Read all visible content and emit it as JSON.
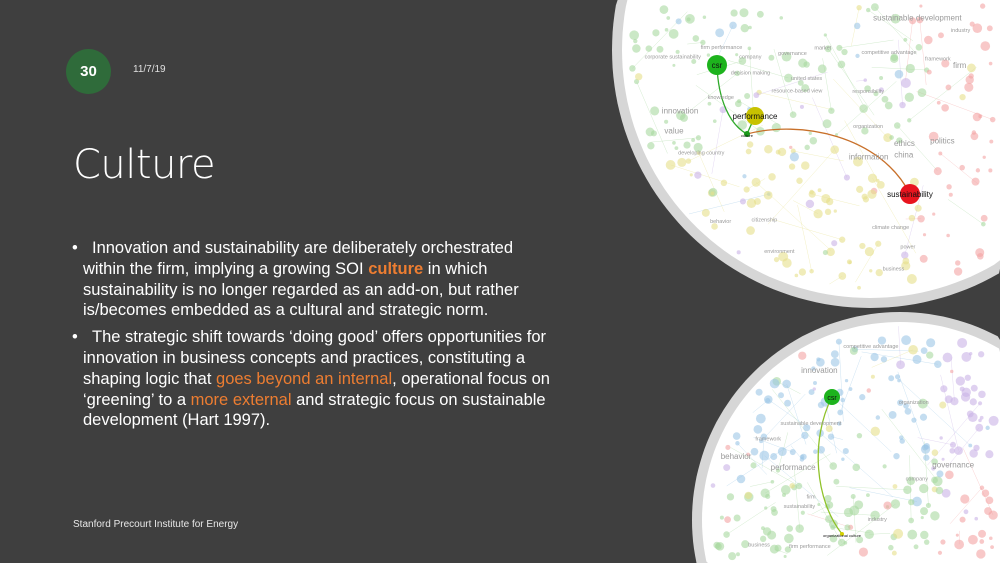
{
  "slide": {
    "number": "30",
    "date": "11/7/19",
    "title": "Culture",
    "footer": "Stanford Precourt Institute for Energy",
    "accent_color": "#ed7d31",
    "badge_color": "#2f6b3a"
  },
  "bullets": [
    {
      "lines": [
        [
          {
            "t": "Innovation and sustainability are deliberately orchestrated"
          }
        ],
        [
          {
            "t": "within the firm, implying a growing SOI "
          },
          {
            "t": "culture",
            "hl": "bold"
          },
          {
            "t": " in which"
          }
        ],
        [
          {
            "t": "sustainability is no longer regarded as an add-on, but rather"
          }
        ],
        [
          {
            "t": "is/becomes embedded as a cultural and strategic norm."
          }
        ]
      ]
    },
    {
      "lines": [
        [
          {
            "t": "The strategic shift towards ‘doing good’ offers opportunities for"
          }
        ],
        [
          {
            "t": "innovation in business concepts and practices, constituting a"
          }
        ],
        [
          {
            "t": "shaping logic that "
          },
          {
            "t": "goes beyond an internal",
            "hl": "normal"
          },
          {
            "t": ", operational focus on"
          }
        ],
        [
          {
            "t": "‘greening’ to a "
          },
          {
            "t": "more external",
            "hl": "normal"
          },
          {
            "t": " and strategic focus on sustainable"
          }
        ],
        [
          {
            "t": "development (Hart 1997)."
          }
        ]
      ]
    }
  ],
  "network_top": {
    "nodes": [
      {
        "label": "csr",
        "color": "#1db31d"
      },
      {
        "label": "performance",
        "color": "#c8c200"
      },
      {
        "label": "culture",
        "color": "#1a9a1a"
      },
      {
        "label": "sustainability",
        "color": "#e8141e"
      }
    ],
    "faint_labels": [
      "firm",
      "governance",
      "firm performance",
      "responsibility",
      "information",
      "company",
      "business",
      "citizenship",
      "ethics",
      "market",
      "developing country",
      "united states",
      "china",
      "organization",
      "industry",
      "environment",
      "sustainable development",
      "climate change",
      "behavior",
      "resource-based view",
      "value",
      "competitive advantage",
      "knowledge",
      "framework",
      "innovation",
      "decision making",
      "corporate sustainability",
      "power",
      "politics"
    ]
  },
  "network_bottom": {
    "nodes": [
      {
        "label": "csr",
        "color": "#1db31d"
      },
      {
        "label": "organizational culture",
        "color": "#d4d000"
      }
    ],
    "faint_labels": [
      "performance",
      "sustainability",
      "sustainable development",
      "firm",
      "governance",
      "firm performance",
      "company",
      "business",
      "behavior",
      "industry",
      "organization",
      "competitive advantage",
      "innovation",
      "framework"
    ]
  }
}
